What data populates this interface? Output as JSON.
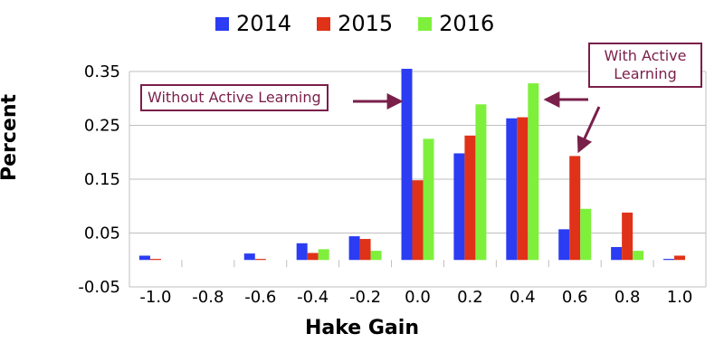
{
  "chart_data": {
    "type": "bar",
    "title": "",
    "xlabel": "Hake Gain",
    "ylabel": "Percent",
    "categories": [
      "-1.0",
      "-0.8",
      "-0.6",
      "-0.4",
      "-0.2",
      "0.0",
      "0.2",
      "0.4",
      "0.6",
      "0.8",
      "1.0"
    ],
    "yticks": [
      "-0.05",
      "0.05",
      "0.15",
      "0.25",
      "0.35"
    ],
    "ylim": [
      -0.05,
      0.35
    ],
    "grid": true,
    "legend_position": "top",
    "series": [
      {
        "name": "2014",
        "color": "#2b3cf2",
        "values": [
          0.008,
          0.0,
          0.012,
          0.031,
          0.044,
          0.355,
          0.198,
          0.263,
          0.057,
          0.024,
          0.002
        ]
      },
      {
        "name": "2015",
        "color": "#e03218",
        "values": [
          0.002,
          0.0,
          0.002,
          0.013,
          0.039,
          0.148,
          0.231,
          0.265,
          0.193,
          0.088,
          0.008
        ]
      },
      {
        "name": "2016",
        "color": "#7ef03c",
        "values": [
          0.0,
          0.0,
          0.0,
          0.02,
          0.017,
          0.225,
          0.289,
          0.328,
          0.095,
          0.017,
          0.0
        ]
      }
    ],
    "annotations": [
      {
        "text": "Without Active Learning",
        "points_to": "2014 at 0.0"
      },
      {
        "text": "With Active\nLearning",
        "points_to": "2015 at 0.6 and 2016 at 0.4"
      }
    ]
  },
  "legend": [
    "2014",
    "2015",
    "2016"
  ],
  "callouts": {
    "without": "Without Active Learning",
    "with_line1": "With Active",
    "with_line2": "Learning"
  },
  "colors": {
    "annotation": "#7a1f4a",
    "grid": "#bfbfbf"
  }
}
